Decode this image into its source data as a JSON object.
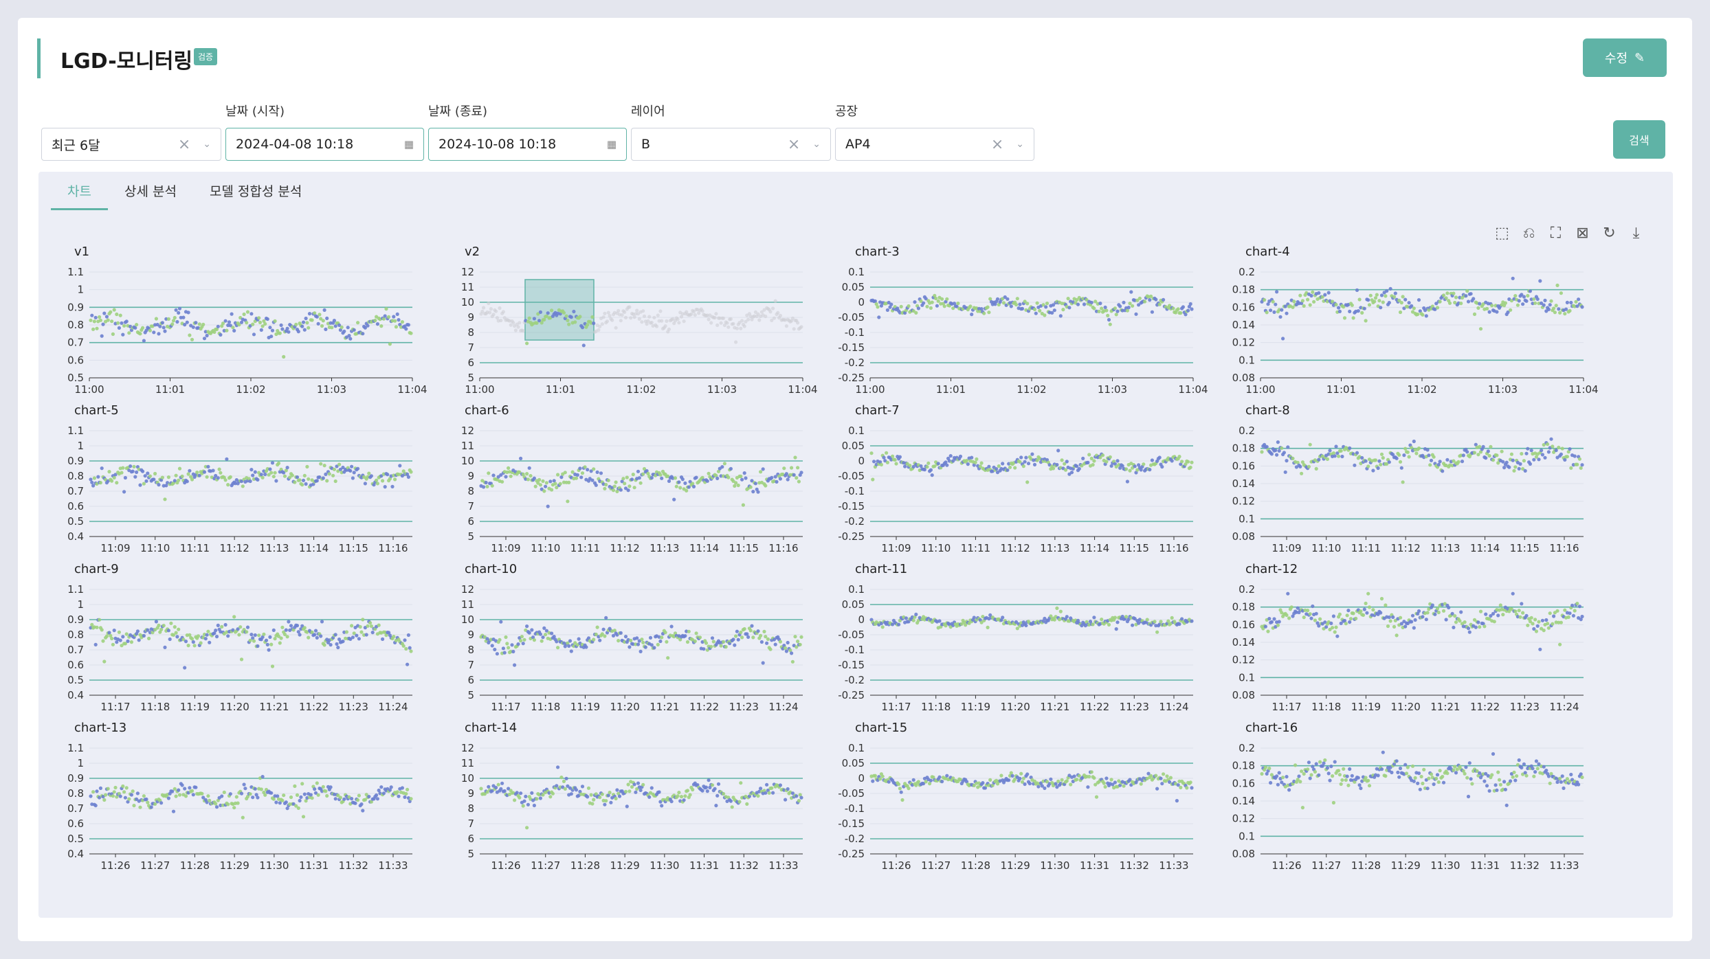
{
  "header": {
    "title": "LGD-모니터링",
    "badge": "검증",
    "edit_label": "수정"
  },
  "filters": {
    "preset": {
      "value": "최근 6달"
    },
    "start": {
      "label": "날짜 (시작)",
      "value": "2024-04-08 10:18"
    },
    "end": {
      "label": "날짜 (종료)",
      "value": "2024-10-08 10:18"
    },
    "layer": {
      "label": "레이어",
      "value": "B"
    },
    "factory": {
      "label": "공장",
      "value": "AP4"
    },
    "search_label": "검색"
  },
  "tabs": [
    {
      "label": "차트",
      "active": true
    },
    {
      "label": "상세 분석",
      "active": false
    },
    {
      "label": "모델 정합성 분석",
      "active": false
    }
  ],
  "toolbar_icons": [
    "zoom-icon",
    "zoom-back-icon",
    "select-rect-icon",
    "clear-select-icon",
    "restore-icon",
    "download-icon"
  ],
  "colors": {
    "accent": "#5fb3a6",
    "series_a": "#6b7fcf",
    "series_b": "#9ed07f"
  },
  "chart_data": [
    {
      "type": "scatter",
      "title": "v1",
      "yticks": [
        "1.1",
        "1",
        "0.9",
        "0.8",
        "0.7",
        "0.6",
        "0.5"
      ],
      "ylim": [
        0.5,
        1.1
      ],
      "limits": [
        0.9,
        0.7
      ],
      "xticks": [
        "11:00",
        "11:01",
        "11:02",
        "11:03",
        "11:04"
      ],
      "center": 0.8,
      "spread": 0.05,
      "brush": false
    },
    {
      "type": "scatter",
      "title": "v2",
      "yticks": [
        "12",
        "11",
        "10",
        "9",
        "8",
        "7",
        "6",
        "5"
      ],
      "ylim": [
        5,
        12
      ],
      "limits": [
        10,
        6
      ],
      "xticks": [
        "11:00",
        "11:01",
        "11:02",
        "11:03",
        "11:04"
      ],
      "center": 8.9,
      "spread": 0.5,
      "brush": true
    },
    {
      "type": "scatter",
      "title": "chart-3",
      "yticks": [
        "0.1",
        "0.05",
        "0",
        "-0.05",
        "-0.1",
        "-0.15",
        "-0.2",
        "-0.25"
      ],
      "ylim": [
        -0.25,
        0.1
      ],
      "limits": [
        0.05,
        -0.2
      ],
      "xticks": [
        "11:00",
        "11:01",
        "11:02",
        "11:03",
        "11:04"
      ],
      "center": -0.01,
      "spread": 0.02,
      "brush": false
    },
    {
      "type": "scatter",
      "title": "chart-4",
      "yticks": [
        "0.2",
        "0.18",
        "0.16",
        "0.14",
        "0.12",
        "0.1",
        "0.08"
      ],
      "ylim": [
        0.08,
        0.2
      ],
      "limits": [
        0.18,
        0.1
      ],
      "xticks": [
        "11:00",
        "11:01",
        "11:02",
        "11:03",
        "11:04"
      ],
      "center": 0.165,
      "spread": 0.01,
      "brush": false
    },
    {
      "type": "scatter",
      "title": "chart-5",
      "yticks": [
        "1.1",
        "1",
        "0.9",
        "0.8",
        "0.7",
        "0.6",
        "0.5",
        "0.4"
      ],
      "ylim": [
        0.4,
        1.1
      ],
      "limits": [
        0.9,
        0.5
      ],
      "xticks": [
        "11:09",
        "11:10",
        "11:11",
        "11:12",
        "11:13",
        "11:14",
        "11:15",
        "11:16"
      ],
      "center": 0.8,
      "spread": 0.05,
      "brush": false
    },
    {
      "type": "scatter",
      "title": "chart-6",
      "yticks": [
        "12",
        "11",
        "10",
        "9",
        "8",
        "7",
        "6",
        "5"
      ],
      "ylim": [
        5,
        12
      ],
      "limits": [
        10,
        6
      ],
      "xticks": [
        "11:09",
        "11:10",
        "11:11",
        "11:12",
        "11:13",
        "11:14",
        "11:15",
        "11:16"
      ],
      "center": 8.8,
      "spread": 0.5,
      "brush": false
    },
    {
      "type": "scatter",
      "title": "chart-7",
      "yticks": [
        "0.1",
        "0.05",
        "0",
        "-0.05",
        "-0.1",
        "-0.15",
        "-0.2",
        "-0.25"
      ],
      "ylim": [
        -0.25,
        0.1
      ],
      "limits": [
        0.05,
        -0.2
      ],
      "xticks": [
        "11:09",
        "11:10",
        "11:11",
        "11:12",
        "11:13",
        "11:14",
        "11:15",
        "11:16"
      ],
      "center": -0.01,
      "spread": 0.02,
      "brush": false
    },
    {
      "type": "scatter",
      "title": "chart-8",
      "yticks": [
        "0.2",
        "0.18",
        "0.16",
        "0.14",
        "0.12",
        "0.1",
        "0.08"
      ],
      "ylim": [
        0.08,
        0.2
      ],
      "limits": [
        0.18,
        0.1
      ],
      "xticks": [
        "11:09",
        "11:10",
        "11:11",
        "11:12",
        "11:13",
        "11:14",
        "11:15",
        "11:16"
      ],
      "center": 0.17,
      "spread": 0.01,
      "brush": false
    },
    {
      "type": "scatter",
      "title": "chart-9",
      "yticks": [
        "1.1",
        "1",
        "0.9",
        "0.8",
        "0.7",
        "0.6",
        "0.5",
        "0.4"
      ],
      "ylim": [
        0.4,
        1.1
      ],
      "limits": [
        0.9,
        0.5
      ],
      "xticks": [
        "11:17",
        "11:18",
        "11:19",
        "11:20",
        "11:21",
        "11:22",
        "11:23",
        "11:24"
      ],
      "center": 0.8,
      "spread": 0.05,
      "brush": false
    },
    {
      "type": "scatter",
      "title": "chart-10",
      "yticks": [
        "12",
        "11",
        "10",
        "9",
        "8",
        "7",
        "6",
        "5"
      ],
      "ylim": [
        5,
        12
      ],
      "limits": [
        10,
        6
      ],
      "xticks": [
        "11:17",
        "11:18",
        "11:19",
        "11:20",
        "11:21",
        "11:22",
        "11:23",
        "11:24"
      ],
      "center": 8.7,
      "spread": 0.5,
      "brush": false
    },
    {
      "type": "scatter",
      "title": "chart-11",
      "yticks": [
        "0.1",
        "0.05",
        "0",
        "-0.05",
        "-0.1",
        "-0.15",
        "-0.2",
        "-0.25"
      ],
      "ylim": [
        -0.25,
        0.1
      ],
      "limits": [
        0.05,
        -0.2
      ],
      "xticks": [
        "11:17",
        "11:18",
        "11:19",
        "11:20",
        "11:21",
        "11:22",
        "11:23",
        "11:24"
      ],
      "center": -0.005,
      "spread": 0.012,
      "brush": false
    },
    {
      "type": "scatter",
      "title": "chart-12",
      "yticks": [
        "0.2",
        "0.18",
        "0.16",
        "0.14",
        "0.12",
        "0.1",
        "0.08"
      ],
      "ylim": [
        0.08,
        0.2
      ],
      "limits": [
        0.18,
        0.1
      ],
      "xticks": [
        "11:17",
        "11:18",
        "11:19",
        "11:20",
        "11:21",
        "11:22",
        "11:23",
        "11:24"
      ],
      "center": 0.168,
      "spread": 0.01,
      "brush": false
    },
    {
      "type": "scatter",
      "title": "chart-13",
      "yticks": [
        "1.1",
        "1",
        "0.9",
        "0.8",
        "0.7",
        "0.6",
        "0.5",
        "0.4"
      ],
      "ylim": [
        0.4,
        1.1
      ],
      "limits": [
        0.9,
        0.5
      ],
      "xticks": [
        "11:26",
        "11:27",
        "11:28",
        "11:29",
        "11:30",
        "11:31",
        "11:32",
        "11:33"
      ],
      "center": 0.78,
      "spread": 0.05,
      "brush": false
    },
    {
      "type": "scatter",
      "title": "chart-14",
      "yticks": [
        "12",
        "11",
        "10",
        "9",
        "8",
        "7",
        "6",
        "5"
      ],
      "ylim": [
        5,
        12
      ],
      "limits": [
        10,
        6
      ],
      "xticks": [
        "11:26",
        "11:27",
        "11:28",
        "11:29",
        "11:30",
        "11:31",
        "11:32",
        "11:33"
      ],
      "center": 9,
      "spread": 0.5,
      "brush": false
    },
    {
      "type": "scatter",
      "title": "chart-15",
      "yticks": [
        "0.1",
        "0.05",
        "0",
        "-0.05",
        "-0.1",
        "-0.15",
        "-0.2",
        "-0.25"
      ],
      "ylim": [
        -0.25,
        0.1
      ],
      "limits": [
        0.05,
        -0.2
      ],
      "xticks": [
        "11:26",
        "11:27",
        "11:28",
        "11:29",
        "11:30",
        "11:31",
        "11:32",
        "11:33"
      ],
      "center": -0.01,
      "spread": 0.015,
      "brush": false
    },
    {
      "type": "scatter",
      "title": "chart-16",
      "yticks": [
        "0.2",
        "0.18",
        "0.16",
        "0.14",
        "0.12",
        "0.1",
        "0.08"
      ],
      "ylim": [
        0.08,
        0.2
      ],
      "limits": [
        0.18,
        0.1
      ],
      "xticks": [
        "11:26",
        "11:27",
        "11:28",
        "11:29",
        "11:30",
        "11:31",
        "11:32",
        "11:33"
      ],
      "center": 0.17,
      "spread": 0.01,
      "brush": false
    }
  ]
}
